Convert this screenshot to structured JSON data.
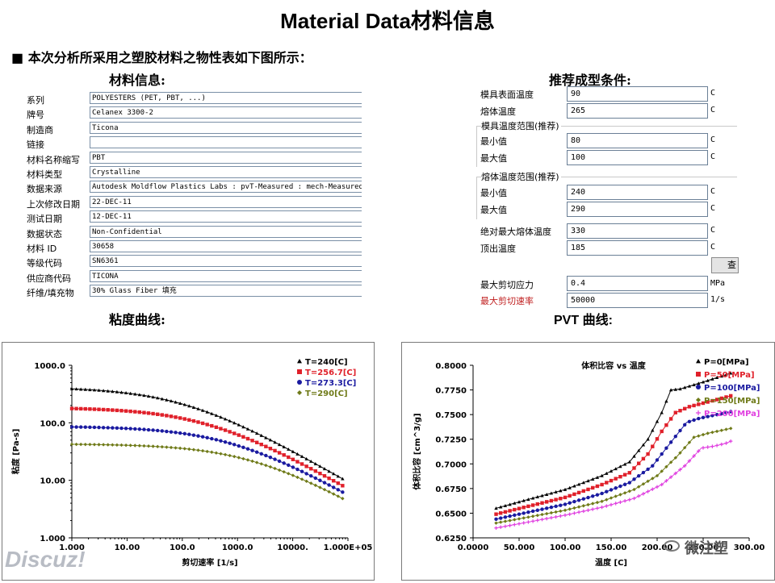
{
  "title": "Material Data材料信息",
  "intro": {
    "bullet": "■",
    "text": "本次分析所采用之塑胶材料之物性表如下图所示："
  },
  "material_info": {
    "heading": "材料信息:",
    "rows": [
      {
        "label": "系列",
        "value": "POLYESTERS (PET, PBT, ...)"
      },
      {
        "label": "牌号",
        "value": "Celanex 3300-2"
      },
      {
        "label": "制造商",
        "value": "Ticona"
      },
      {
        "label": "链接",
        "value": ""
      },
      {
        "label": "材料名称缩写",
        "value": "PBT"
      },
      {
        "label": "材料类型",
        "value": "Crystalline"
      },
      {
        "label": "数据来源",
        "value": "Autodesk Moldflow Plastics Labs : pvT-Measured : mech-Measured"
      },
      {
        "label": "上次修改日期",
        "value": "22-DEC-11"
      },
      {
        "label": "测试日期",
        "value": "12-DEC-11"
      },
      {
        "label": "数据状态",
        "value": "Non-Confidential"
      },
      {
        "label": "材料 ID",
        "value": "30658"
      },
      {
        "label": "等级代码",
        "value": "SN6361"
      },
      {
        "label": "供应商代码",
        "value": "TICONA"
      },
      {
        "label": "纤维/填充物",
        "value": "30% Glass Fiber 填充"
      }
    ]
  },
  "molding": {
    "heading": "推荐成型条件:",
    "mold_surface_temp": {
      "label": "模具表面温度",
      "value": "90",
      "unit": "C"
    },
    "melt_temp": {
      "label": "熔体温度",
      "value": "265",
      "unit": "C"
    },
    "mold_range": {
      "title": "模具温度范围(推荐)",
      "min_label": "最小值",
      "min_value": "80",
      "max_label": "最大值",
      "max_value": "100",
      "unit": "C"
    },
    "melt_range": {
      "title": "熔体温度范围(推荐)",
      "min_label": "最小值",
      "min_value": "240",
      "max_label": "最大值",
      "max_value": "290",
      "unit": "C"
    },
    "abs_max_melt": {
      "label": "绝对最大熔体温度",
      "value": "330",
      "unit": "C"
    },
    "ejection_temp": {
      "label": "顶出温度",
      "value": "185",
      "unit": "C"
    },
    "button_label": "查",
    "max_shear_stress": {
      "label": "最大剪切应力",
      "value": "0.4",
      "unit": "MPa"
    },
    "max_shear_rate": {
      "label": "最大剪切速率",
      "value": "50000",
      "unit": "1/s"
    }
  },
  "viscosity_heading": "粘度曲线:",
  "pvt_heading": "PVT 曲线:",
  "watermark": {
    "left": "Discuz!",
    "right": "微注塑"
  },
  "colors": {
    "black": "#000000",
    "red": "#e0202a",
    "blue": "#1a1aa0",
    "olive": "#6f7a18",
    "magenta": "#e040e0"
  },
  "chart_data": [
    {
      "type": "line",
      "title": "",
      "xlabel": "剪切速率 [1/s]",
      "ylabel": "粘度 [Pa-s]",
      "xscale": "log",
      "yscale": "log",
      "xlim": [
        1,
        100000
      ],
      "ylim": [
        1,
        1000
      ],
      "x_ticks": [
        "1.000",
        "10.00",
        "100.0",
        "1000.0",
        "10000.",
        "1.000E+05"
      ],
      "y_ticks": [
        "1.000",
        "10.00",
        "100.0",
        "1000.0"
      ],
      "legend_position": "top-right",
      "series": [
        {
          "name": "T=240[C]",
          "color": "#000000",
          "marker": "triangle",
          "eta0": 420,
          "tau": 44000,
          "n": 0.45
        },
        {
          "name": "T=256.7[C]",
          "color": "#e0202a",
          "marker": "square",
          "eta0": 185,
          "tau": 54000,
          "n": 0.45
        },
        {
          "name": "T=273.3[C]",
          "color": "#1a1aa0",
          "marker": "circle",
          "eta0": 87,
          "tau": 66000,
          "n": 0.45
        },
        {
          "name": "T=290[C]",
          "color": "#6f7a18",
          "marker": "diamond",
          "eta0": 43,
          "tau": 80000,
          "n": 0.45
        }
      ],
      "x_range_data": [
        1,
        80000
      ]
    },
    {
      "type": "line",
      "title": "体积比容 vs 温度",
      "xlabel": "温度 [C]",
      "ylabel": "体积比容 [cm^3/g]",
      "xlim": [
        0,
        300
      ],
      "ylim": [
        0.625,
        0.8
      ],
      "x_ticks": [
        "0.0000",
        "50.000",
        "100.00",
        "150.00",
        "200.00",
        "250.00",
        "300.00"
      ],
      "y_ticks": [
        "0.6250",
        "0.6500",
        "0.6750",
        "0.7000",
        "0.7250",
        "0.7500",
        "0.7750",
        "0.8000"
      ],
      "legend_position": "top-right",
      "series": [
        {
          "name": "P=0[MPa]",
          "color": "#000000",
          "marker": "triangle",
          "points": [
            [
              25,
              0.655
            ],
            [
              60,
              0.664
            ],
            [
              100,
              0.674
            ],
            [
              140,
              0.688
            ],
            [
              170,
              0.702
            ],
            [
              190,
              0.725
            ],
            [
              205,
              0.752
            ],
            [
              215,
              0.775
            ],
            [
              225,
              0.776
            ],
            [
              250,
              0.783
            ],
            [
              280,
              0.792
            ]
          ]
        },
        {
          "name": "P=50[MPa]",
          "color": "#e0202a",
          "marker": "square",
          "points": [
            [
              25,
              0.649
            ],
            [
              60,
              0.657
            ],
            [
              100,
              0.666
            ],
            [
              140,
              0.679
            ],
            [
              170,
              0.691
            ],
            [
              190,
              0.71
            ],
            [
              205,
              0.733
            ],
            [
              220,
              0.752
            ],
            [
              235,
              0.758
            ],
            [
              260,
              0.764
            ],
            [
              280,
              0.769
            ]
          ]
        },
        {
          "name": "P=100[MPa]",
          "color": "#1a1aa0",
          "marker": "circle",
          "points": [
            [
              25,
              0.644
            ],
            [
              60,
              0.651
            ],
            [
              100,
              0.659
            ],
            [
              140,
              0.67
            ],
            [
              170,
              0.681
            ],
            [
              195,
              0.698
            ],
            [
              215,
              0.722
            ],
            [
              232,
              0.742
            ],
            [
              245,
              0.746
            ],
            [
              265,
              0.75
            ],
            [
              280,
              0.753
            ]
          ]
        },
        {
          "name": "P=150[MPa]",
          "color": "#6f7a18",
          "marker": "diamond",
          "points": [
            [
              25,
              0.64
            ],
            [
              60,
              0.646
            ],
            [
              100,
              0.653
            ],
            [
              140,
              0.662
            ],
            [
              175,
              0.674
            ],
            [
              200,
              0.688
            ],
            [
              222,
              0.708
            ],
            [
              240,
              0.727
            ],
            [
              255,
              0.731
            ],
            [
              270,
              0.734
            ],
            [
              280,
              0.736
            ]
          ]
        },
        {
          "name": "P=200[MPa]",
          "color": "#e040e0",
          "marker": "plus",
          "points": [
            [
              25,
              0.635
            ],
            [
              60,
              0.641
            ],
            [
              100,
              0.648
            ],
            [
              140,
              0.656
            ],
            [
              175,
              0.665
            ],
            [
              205,
              0.679
            ],
            [
              230,
              0.698
            ],
            [
              248,
              0.716
            ],
            [
              262,
              0.718
            ],
            [
              275,
              0.721
            ],
            [
              280,
              0.723
            ]
          ]
        }
      ]
    }
  ]
}
